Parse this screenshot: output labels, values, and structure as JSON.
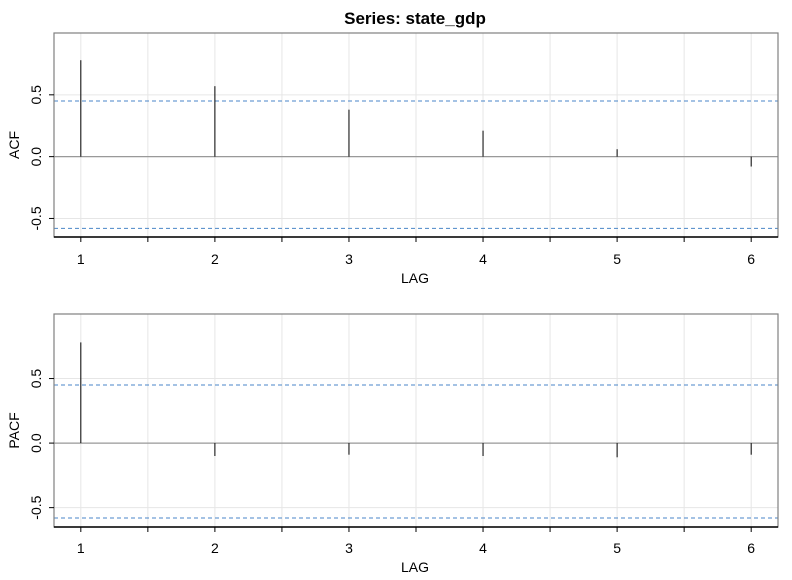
{
  "title": "Series:  state_gdp",
  "chart_data": [
    {
      "type": "bar",
      "panel": "acf",
      "xlabel": "LAG",
      "ylabel": "ACF",
      "x": [
        1,
        2,
        3,
        4,
        5,
        6
      ],
      "values": [
        0.78,
        0.57,
        0.38,
        0.21,
        0.06,
        -0.08
      ],
      "xticks": [
        "1",
        "2",
        "3",
        "4",
        "5",
        "6"
      ],
      "yticks": [
        "-0.5",
        "0.0",
        "0.5"
      ],
      "ytick_values": [
        -0.5,
        0.0,
        0.5
      ],
      "xlim": [
        0.8,
        6.2
      ],
      "ylim": [
        -0.65,
        1.0
      ],
      "ci": [
        0.45,
        -0.58
      ],
      "grid": true,
      "zero_line": true
    },
    {
      "type": "bar",
      "panel": "pacf",
      "xlabel": "LAG",
      "ylabel": "PACF",
      "x": [
        1,
        2,
        3,
        4,
        5,
        6
      ],
      "values": [
        0.78,
        -0.1,
        -0.09,
        -0.1,
        -0.11,
        -0.09
      ],
      "xticks": [
        "1",
        "2",
        "3",
        "4",
        "5",
        "6"
      ],
      "yticks": [
        "-0.5",
        "0.0",
        "0.5"
      ],
      "ytick_values": [
        -0.5,
        0.0,
        0.5
      ],
      "xlim": [
        0.8,
        6.2
      ],
      "ylim": [
        -0.65,
        1.0
      ],
      "ci": [
        0.45,
        -0.58
      ],
      "grid": true,
      "zero_line": true
    }
  ],
  "colors": {
    "frame": "#808080",
    "grid": "#e6e6e6",
    "zero_line": "#999999",
    "ci_line": "#4a86c8",
    "bar": "#000000"
  }
}
